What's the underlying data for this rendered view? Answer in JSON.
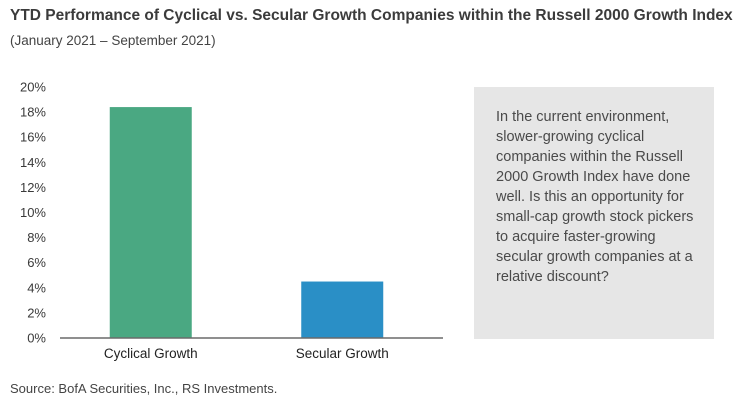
{
  "chart_data": {
    "type": "bar",
    "title": "YTD Performance of Cyclical vs. Secular Growth Companies within the Russell 2000 Growth Index",
    "subtitle": "(January 2021 – September 2021)",
    "categories": [
      "Cyclical Growth",
      "Secular Growth"
    ],
    "values": [
      18.4,
      4.5
    ],
    "colors": [
      "#4aa882",
      "#2a8fc6"
    ],
    "xlabel": "",
    "ylabel": "",
    "ylim": [
      0,
      20
    ],
    "yticks": [
      0,
      2,
      4,
      6,
      8,
      10,
      12,
      14,
      16,
      18,
      20
    ],
    "ytick_labels": [
      "0%",
      "2%",
      "4%",
      "6%",
      "8%",
      "10%",
      "12%",
      "14%",
      "16%",
      "18%",
      "20%"
    ],
    "grid": false,
    "legend": "none"
  },
  "callout": {
    "text": "In the current environment, slower-growing cyclical companies within the Russell 2000 Growth Index have done well. Is this an opportunity for small-cap growth stock pickers to acquire faster-growing secular growth companies at a relative discount?"
  },
  "source": "Source: BofA Securities, Inc., RS Investments."
}
